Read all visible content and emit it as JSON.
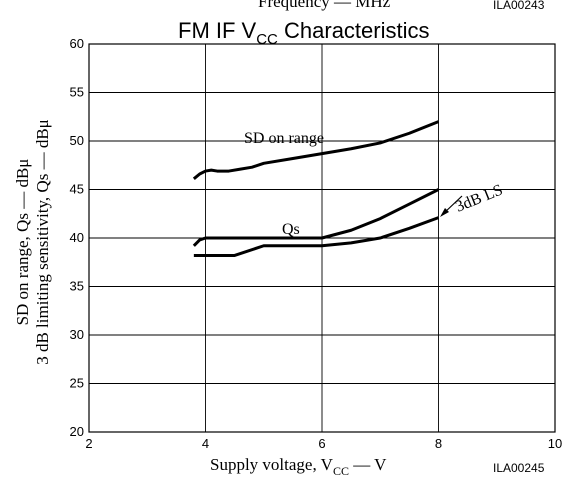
{
  "header": {
    "top_clip_text": "Frequency — MHz",
    "top_code": "ILA00243"
  },
  "chart_data": {
    "type": "line",
    "title_main": "FM IF V",
    "title_sub": "CC",
    "title_tail": " Characteristics",
    "xlabel_main": "Supply voltage, V",
    "xlabel_sub": "CC",
    "xlabel_tail": " — V",
    "ylabel_line1": "SD on range, Qs — dBμ",
    "ylabel_line2": "3 dB limiting sensitivity, Qs — dBμ",
    "code": "ILA00245",
    "xlim": [
      2,
      10
    ],
    "ylim": [
      20,
      60
    ],
    "xticks": [
      2,
      4,
      6,
      8,
      10
    ],
    "yticks": [
      20,
      25,
      30,
      35,
      40,
      45,
      50,
      55,
      60
    ],
    "grid": true,
    "series": [
      {
        "name": "SD on range",
        "x": [
          3.8,
          3.9,
          4.0,
          4.1,
          4.2,
          4.4,
          4.6,
          4.8,
          5.0,
          5.5,
          6.0,
          6.5,
          7.0,
          7.5,
          8.0
        ],
        "y": [
          46.1,
          46.6,
          46.9,
          47.0,
          46.9,
          46.9,
          47.1,
          47.3,
          47.7,
          48.2,
          48.7,
          49.2,
          49.8,
          50.8,
          52.0
        ]
      },
      {
        "name": "Qs",
        "x": [
          3.8,
          3.9,
          4.0,
          5.0,
          6.0,
          6.5,
          7.0,
          7.5,
          8.0
        ],
        "y": [
          39.2,
          39.8,
          40.0,
          40.0,
          40.0,
          40.8,
          42.0,
          43.5,
          45.0
        ]
      },
      {
        "name": "3dB LS",
        "x": [
          3.8,
          4.5,
          5.0,
          6.0,
          6.5,
          7.0,
          7.5,
          8.0
        ],
        "y": [
          38.2,
          38.2,
          39.2,
          39.2,
          39.5,
          40.0,
          41.0,
          42.1
        ]
      }
    ]
  }
}
